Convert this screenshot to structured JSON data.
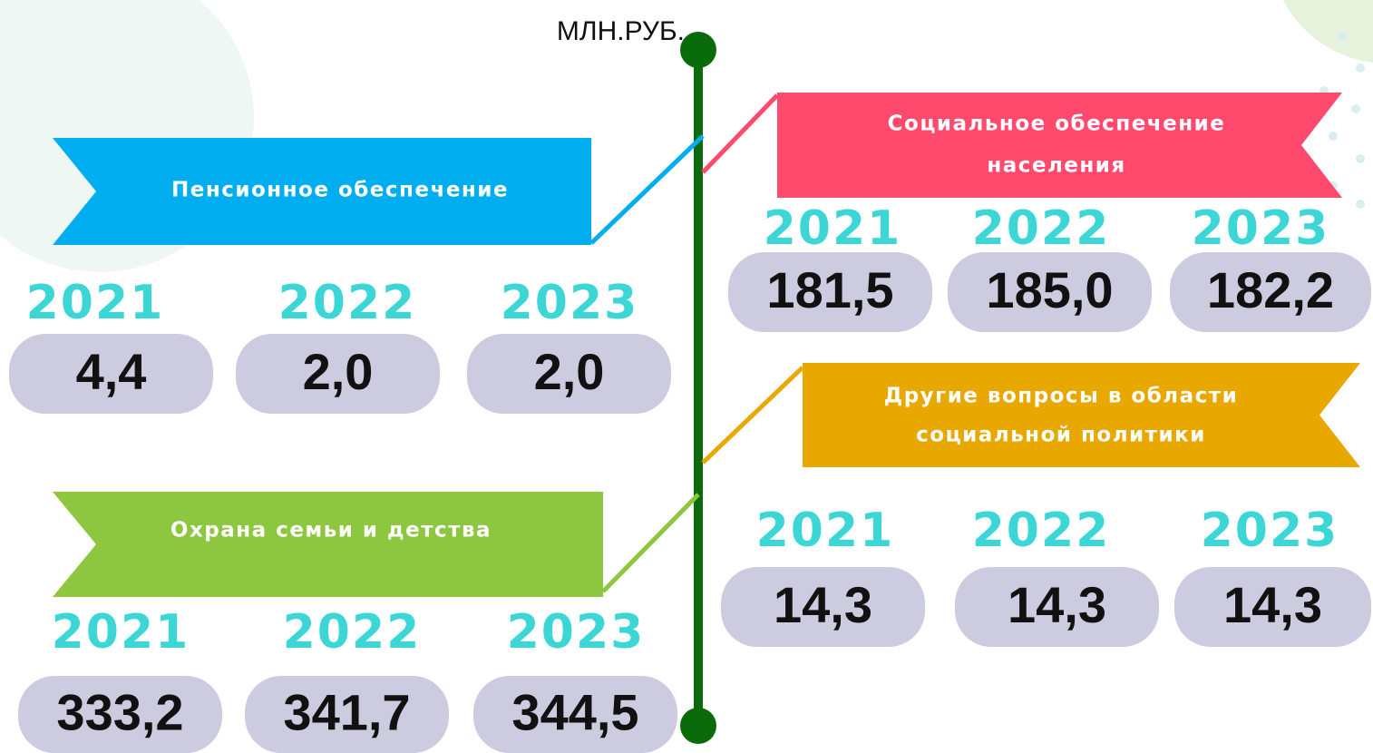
{
  "unit": "МЛН.РУБ.",
  "sections": [
    {
      "title_lines": [
        "Пенсионное обеспечение"
      ],
      "years": [
        "2021",
        "2022",
        "2023"
      ],
      "values": [
        "4,4",
        "2,0",
        "2,0"
      ]
    },
    {
      "title_lines": [
        "Социальное обеспечение",
        "населения"
      ],
      "years": [
        "2021",
        "2022",
        "2023"
      ],
      "values": [
        "181,5",
        "185,0",
        "182,2"
      ]
    },
    {
      "title_lines": [
        "Другие вопросы в области",
        "социальной политики"
      ],
      "years": [
        "2021",
        "2022",
        "2023"
      ],
      "values": [
        "14,3",
        "14,3",
        "14,3"
      ]
    },
    {
      "title_lines": [
        "Охрана семьи и детства"
      ],
      "years": [
        "2021",
        "2022",
        "2023"
      ],
      "values": [
        "333,2",
        "341,7",
        "344,5"
      ]
    }
  ]
}
